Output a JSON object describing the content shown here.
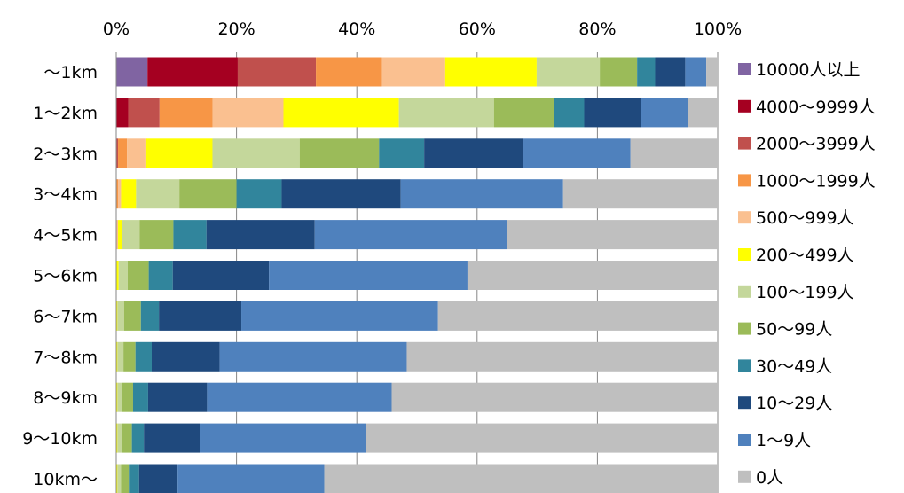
{
  "chart_data": {
    "type": "bar",
    "orientation": "horizontal",
    "stacked": "percent",
    "xlim": [
      0,
      100
    ],
    "x_ticks": [
      "0%",
      "20%",
      "40%",
      "60%",
      "80%",
      "100%"
    ],
    "grid": "vertical",
    "legend_position": "right",
    "categories": [
      "～1km",
      "1～2km",
      "2～3km",
      "3～4km",
      "4～5km",
      "5～6km",
      "6～7km",
      "7～8km",
      "8～9km",
      "9～10km",
      "10km～"
    ],
    "series": [
      {
        "name": "10000人以上",
        "color": "#8064A2",
        "values": [
          5.2,
          0,
          0,
          0,
          0,
          0,
          0,
          0,
          0,
          0,
          0
        ]
      },
      {
        "name": "4000～9999人",
        "color": "#A50021",
        "values": [
          15.0,
          2.0,
          0,
          0,
          0,
          0,
          0,
          0,
          0,
          0,
          0
        ]
      },
      {
        "name": "2000～3999人",
        "color": "#C0504D",
        "values": [
          13.0,
          5.2,
          0.3,
          0,
          0,
          0,
          0,
          0,
          0,
          0,
          0
        ]
      },
      {
        "name": "1000～1999人",
        "color": "#F79646",
        "values": [
          11.0,
          8.8,
          1.5,
          0.3,
          0,
          0,
          0,
          0,
          0,
          0,
          0
        ]
      },
      {
        "name": "500～999人",
        "color": "#FAC090",
        "values": [
          10.5,
          11.8,
          3.2,
          0.5,
          0.3,
          0,
          0,
          0,
          0,
          0,
          0
        ]
      },
      {
        "name": "200～499人",
        "color": "#FFFF00",
        "values": [
          15.2,
          19.2,
          11.0,
          2.5,
          0.6,
          0.4,
          0.2,
          0.2,
          0.2,
          0.2,
          0.2
        ]
      },
      {
        "name": "100～199人",
        "color": "#C4D79B",
        "values": [
          10.5,
          15.8,
          14.5,
          7.2,
          3.0,
          1.5,
          1.1,
          1.0,
          0.8,
          0.8,
          0.6
        ]
      },
      {
        "name": "50～99人",
        "color": "#9BBB59",
        "values": [
          6.2,
          10.0,
          13.2,
          9.5,
          5.6,
          3.5,
          2.8,
          2.0,
          1.8,
          1.6,
          1.3
        ]
      },
      {
        "name": "30～49人",
        "color": "#31859C",
        "values": [
          3.0,
          5.0,
          7.5,
          7.5,
          5.5,
          4.0,
          3.0,
          2.7,
          2.5,
          2.0,
          1.7
        ]
      },
      {
        "name": "10～29人",
        "color": "#1F497D",
        "values": [
          5.0,
          9.5,
          16.5,
          19.8,
          18.0,
          16.0,
          13.7,
          11.3,
          9.8,
          9.3,
          6.4
        ]
      },
      {
        "name": "1～9人",
        "color": "#4F81BD",
        "values": [
          3.5,
          7.8,
          17.8,
          27.0,
          32.0,
          33.0,
          32.7,
          31.1,
          30.7,
          27.6,
          24.4
        ]
      },
      {
        "name": "0人",
        "color": "#BFBFBF",
        "values": [
          1.9,
          4.9,
          14.5,
          25.7,
          35.0,
          41.6,
          46.5,
          51.7,
          54.2,
          58.5,
          65.4
        ]
      }
    ]
  }
}
